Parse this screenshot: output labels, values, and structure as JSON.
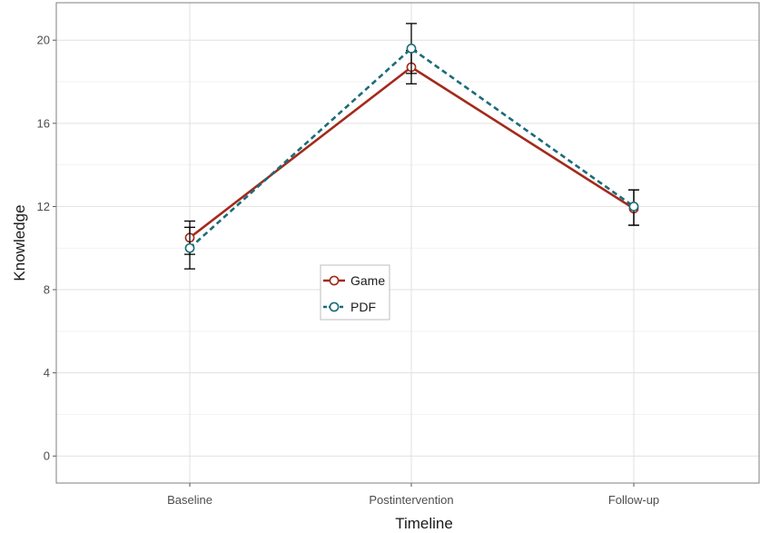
{
  "chart_data": {
    "type": "line",
    "title": "",
    "xlabel": "Timeline",
    "ylabel": "Knowledge",
    "categories": [
      "Baseline",
      "Postintervention",
      "Follow-up"
    ],
    "ylim": [
      -1.3,
      21.8
    ],
    "yticks": [
      0,
      4,
      8,
      12,
      16,
      20
    ],
    "grid": true,
    "legend_position": "center",
    "series": [
      {
        "name": "Game",
        "color": "#A32A1C",
        "line_style": "solid",
        "values": [
          10.5,
          18.7,
          11.9
        ],
        "error_low": [
          9.7,
          17.9,
          11.1
        ],
        "error_high": [
          11.3,
          19.5,
          12.8
        ]
      },
      {
        "name": "PDF",
        "color": "#1B6C7A",
        "line_style": "dashed",
        "values": [
          10.0,
          19.6,
          12.0
        ],
        "error_low": [
          9.0,
          18.4,
          11.1
        ],
        "error_high": [
          11.0,
          20.8,
          12.8
        ]
      }
    ]
  }
}
